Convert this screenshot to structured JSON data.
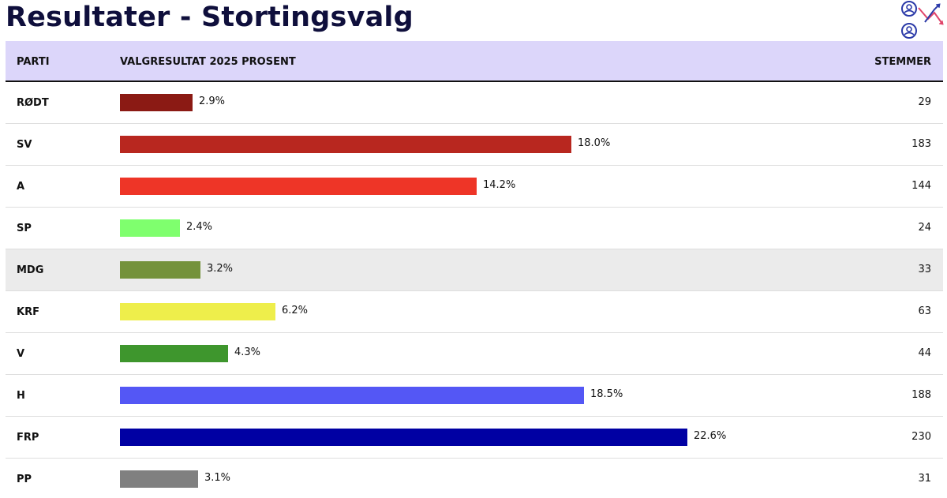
{
  "title": "Resultater - Stortingsvalg",
  "logo_icon": "election-analytics-logo-icon",
  "table": {
    "headers": {
      "party": "PARTI",
      "result": "VALGRESULTAT 2025 PROSENT",
      "votes": "STEMMER"
    }
  },
  "chart_data": {
    "type": "bar",
    "orientation": "horizontal",
    "title": "",
    "categories": [
      "RØDT",
      "SV",
      "A",
      "SP",
      "MDG",
      "KRF",
      "V",
      "H",
      "FRP",
      "PP"
    ],
    "values": [
      2.9,
      18.0,
      14.2,
      2.4,
      3.2,
      6.2,
      4.3,
      18.5,
      22.6,
      3.1
    ],
    "value_labels": [
      "2.9%",
      "18.0%",
      "14.2%",
      "2.4%",
      "3.2%",
      "6.2%",
      "4.3%",
      "18.5%",
      "22.6%",
      "3.1%"
    ],
    "votes": [
      "29",
      "183",
      "144",
      "24",
      "33",
      "63",
      "44",
      "188",
      "230",
      "31"
    ],
    "colors": [
      "#8b1a14",
      "#b8271f",
      "#ee3527",
      "#7fff6e",
      "#74923b",
      "#eeee4b",
      "#3e962d",
      "#5457f5",
      "#0000a3",
      "#808080"
    ],
    "highlighted_row": "MDG"
  }
}
